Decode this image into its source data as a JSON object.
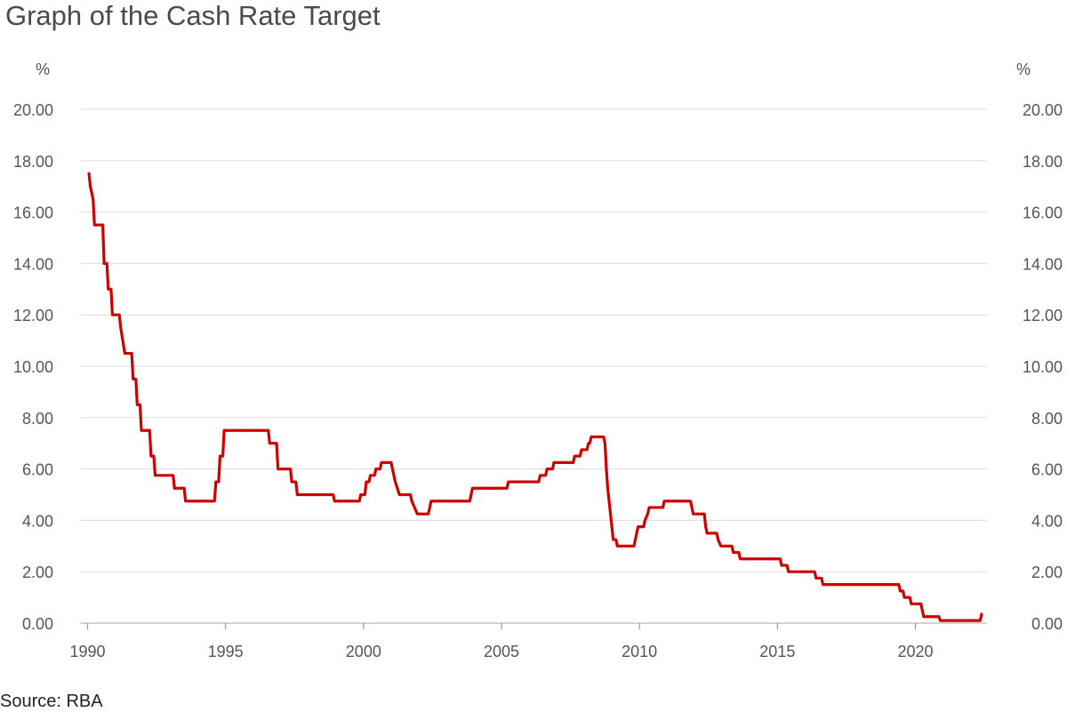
{
  "page": {
    "title": "Graph of the Cash Rate Target",
    "source": "Source: RBA"
  },
  "chart_data": {
    "type": "line",
    "title": "Graph of the Cash Rate Target",
    "xlabel": "",
    "ylabel": "%",
    "ylabel_right": "%",
    "xlim": [
      1990,
      2022.6
    ],
    "ylim": [
      0,
      20
    ],
    "x_ticks": [
      1990,
      1995,
      2000,
      2005,
      2010,
      2015,
      2020
    ],
    "y_ticks": [
      "0.00",
      "2.00",
      "4.00",
      "6.00",
      "8.00",
      "10.00",
      "12.00",
      "14.00",
      "16.00",
      "18.00",
      "20.00"
    ],
    "grid": true,
    "line_color": "#cc0000",
    "series": [
      {
        "name": "",
        "points": [
          [
            1990.05,
            17.5
          ],
          [
            1990.1,
            17.0
          ],
          [
            1990.2,
            16.5
          ],
          [
            1990.25,
            15.5
          ],
          [
            1990.55,
            15.5
          ],
          [
            1990.6,
            14.0
          ],
          [
            1990.7,
            14.0
          ],
          [
            1990.75,
            13.0
          ],
          [
            1990.85,
            13.0
          ],
          [
            1990.9,
            12.0
          ],
          [
            1991.15,
            12.0
          ],
          [
            1991.2,
            11.5
          ],
          [
            1991.35,
            10.5
          ],
          [
            1991.6,
            10.5
          ],
          [
            1991.65,
            9.5
          ],
          [
            1991.75,
            9.5
          ],
          [
            1991.8,
            8.5
          ],
          [
            1991.9,
            8.5
          ],
          [
            1991.95,
            7.5
          ],
          [
            1992.25,
            7.5
          ],
          [
            1992.3,
            6.5
          ],
          [
            1992.4,
            6.5
          ],
          [
            1992.45,
            5.75
          ],
          [
            1993.1,
            5.75
          ],
          [
            1993.15,
            5.25
          ],
          [
            1993.5,
            5.25
          ],
          [
            1993.55,
            4.75
          ],
          [
            1994.6,
            4.75
          ],
          [
            1994.65,
            5.5
          ],
          [
            1994.75,
            5.5
          ],
          [
            1994.8,
            6.5
          ],
          [
            1994.9,
            6.5
          ],
          [
            1994.95,
            7.5
          ],
          [
            1996.55,
            7.5
          ],
          [
            1996.6,
            7.0
          ],
          [
            1996.85,
            7.0
          ],
          [
            1996.9,
            6.0
          ],
          [
            1997.35,
            6.0
          ],
          [
            1997.4,
            5.5
          ],
          [
            1997.55,
            5.5
          ],
          [
            1997.6,
            5.0
          ],
          [
            1998.9,
            5.0
          ],
          [
            1998.95,
            4.75
          ],
          [
            1999.85,
            4.75
          ],
          [
            1999.9,
            5.0
          ],
          [
            2000.05,
            5.0
          ],
          [
            2000.1,
            5.5
          ],
          [
            2000.2,
            5.5
          ],
          [
            2000.25,
            5.75
          ],
          [
            2000.4,
            5.75
          ],
          [
            2000.45,
            6.0
          ],
          [
            2000.6,
            6.0
          ],
          [
            2000.65,
            6.25
          ],
          [
            2001.0,
            6.25
          ],
          [
            2001.1,
            5.75
          ],
          [
            2001.15,
            5.5
          ],
          [
            2001.3,
            5.0
          ],
          [
            2001.7,
            5.0
          ],
          [
            2001.75,
            4.75
          ],
          [
            2001.85,
            4.5
          ],
          [
            2001.95,
            4.25
          ],
          [
            2002.35,
            4.25
          ],
          [
            2002.4,
            4.5
          ],
          [
            2002.45,
            4.75
          ],
          [
            2003.85,
            4.75
          ],
          [
            2003.9,
            5.0
          ],
          [
            2003.95,
            5.25
          ],
          [
            2005.2,
            5.25
          ],
          [
            2005.25,
            5.5
          ],
          [
            2006.35,
            5.5
          ],
          [
            2006.4,
            5.75
          ],
          [
            2006.6,
            5.75
          ],
          [
            2006.65,
            6.0
          ],
          [
            2006.85,
            6.0
          ],
          [
            2006.9,
            6.25
          ],
          [
            2007.6,
            6.25
          ],
          [
            2007.65,
            6.5
          ],
          [
            2007.85,
            6.5
          ],
          [
            2007.9,
            6.75
          ],
          [
            2008.1,
            6.75
          ],
          [
            2008.15,
            7.0
          ],
          [
            2008.2,
            7.0
          ],
          [
            2008.25,
            7.25
          ],
          [
            2008.7,
            7.25
          ],
          [
            2008.75,
            7.0
          ],
          [
            2008.8,
            6.0
          ],
          [
            2008.85,
            5.25
          ],
          [
            2008.95,
            4.25
          ],
          [
            2009.05,
            3.25
          ],
          [
            2009.15,
            3.25
          ],
          [
            2009.2,
            3.0
          ],
          [
            2009.8,
            3.0
          ],
          [
            2009.85,
            3.25
          ],
          [
            2009.9,
            3.5
          ],
          [
            2009.95,
            3.75
          ],
          [
            2010.15,
            3.75
          ],
          [
            2010.2,
            4.0
          ],
          [
            2010.3,
            4.25
          ],
          [
            2010.35,
            4.5
          ],
          [
            2010.85,
            4.5
          ],
          [
            2010.9,
            4.75
          ],
          [
            2011.85,
            4.75
          ],
          [
            2011.9,
            4.5
          ],
          [
            2011.95,
            4.25
          ],
          [
            2012.35,
            4.25
          ],
          [
            2012.4,
            3.75
          ],
          [
            2012.45,
            3.5
          ],
          [
            2012.8,
            3.5
          ],
          [
            2012.85,
            3.25
          ],
          [
            2012.95,
            3.0
          ],
          [
            2013.35,
            3.0
          ],
          [
            2013.4,
            2.75
          ],
          [
            2013.6,
            2.75
          ],
          [
            2013.65,
            2.5
          ],
          [
            2015.1,
            2.5
          ],
          [
            2015.15,
            2.25
          ],
          [
            2015.35,
            2.25
          ],
          [
            2015.4,
            2.0
          ],
          [
            2016.35,
            2.0
          ],
          [
            2016.4,
            1.75
          ],
          [
            2016.6,
            1.75
          ],
          [
            2016.65,
            1.5
          ],
          [
            2019.4,
            1.5
          ],
          [
            2019.45,
            1.25
          ],
          [
            2019.55,
            1.25
          ],
          [
            2019.6,
            1.0
          ],
          [
            2019.8,
            1.0
          ],
          [
            2019.85,
            0.75
          ],
          [
            2020.2,
            0.75
          ],
          [
            2020.25,
            0.5
          ],
          [
            2020.3,
            0.25
          ],
          [
            2020.85,
            0.25
          ],
          [
            2020.9,
            0.1
          ],
          [
            2022.35,
            0.1
          ],
          [
            2022.4,
            0.35
          ]
        ]
      }
    ]
  }
}
